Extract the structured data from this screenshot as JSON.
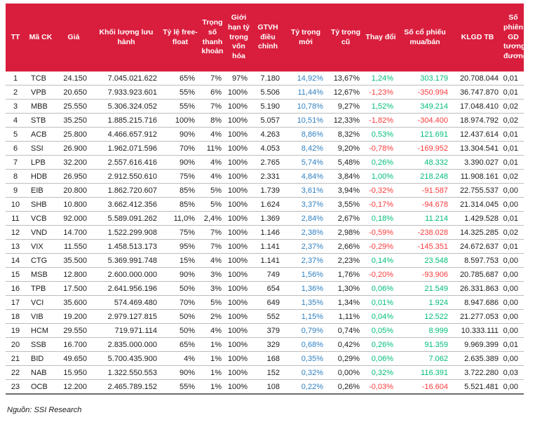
{
  "colors": {
    "header_bg": "#D91E3D",
    "header_text": "#FFFFFF",
    "body_text": "#1B1B1B",
    "blue": "#2E7FC1",
    "green": "#00BE78",
    "red": "#FA3B3B",
    "row_divider": "#BDBDBD",
    "table_bottom_border": "#6D6D6D"
  },
  "footer": {
    "source": "Nguồn: SSI Research"
  },
  "table": {
    "columns": [
      {
        "key": "tt",
        "label": "TT",
        "color_rule": "none"
      },
      {
        "key": "ma-ck",
        "label": "Mã CK",
        "color_rule": "none"
      },
      {
        "key": "gia",
        "label": "Giá",
        "color_rule": "none"
      },
      {
        "key": "khoi-luong-luu-hanh",
        "label": "Khối lượng lưu hành",
        "color_rule": "none"
      },
      {
        "key": "ty-le-free-float",
        "label": "Tỷ lệ free-float",
        "color_rule": "none"
      },
      {
        "key": "trong-so-thanh-khoan",
        "label": "Trọng số thanh khoản",
        "color_rule": "none"
      },
      {
        "key": "gioi-han-ty-trong-von-hoa",
        "label": "Giới hạn tỷ trọng vốn hóa",
        "color_rule": "none"
      },
      {
        "key": "gtvh-dieu-chinh",
        "label": "GTVH điều chỉnh",
        "color_rule": "none"
      },
      {
        "key": "ty-trong-moi",
        "label": "Tỷ trọng mới",
        "color_rule": "blue"
      },
      {
        "key": "ty-trong-cu",
        "label": "Tỷ trọng cũ",
        "color_rule": "none"
      },
      {
        "key": "thay-doi",
        "label": "Thay đổi",
        "color_rule": "sign"
      },
      {
        "key": "so-co-phieu-mua-ban",
        "label": "Số cổ phiếu mua/bán",
        "color_rule": "sign"
      },
      {
        "key": "klgd-tb",
        "label": "KLGD TB",
        "color_rule": "none"
      },
      {
        "key": "so-phien-gd-tuong-duong",
        "label": "Số phiên GD tương đương",
        "color_rule": "none"
      }
    ],
    "rows": [
      [
        "1",
        "TCB",
        "24.150",
        "7.045.021.622",
        "65%",
        "7%",
        "97%",
        "7.180",
        "14,92%",
        "13,67%",
        "1,24%",
        "303.179",
        "20.708.044",
        "0,01"
      ],
      [
        "2",
        "VPB",
        "20.650",
        "7.933.923.601",
        "55%",
        "6%",
        "100%",
        "5.506",
        "11,44%",
        "12,67%",
        "-1,23%",
        "-350.994",
        "36.747.870",
        "0,01"
      ],
      [
        "3",
        "MBB",
        "25.550",
        "5.306.324.052",
        "55%",
        "7%",
        "100%",
        "5.190",
        "10,78%",
        "9,27%",
        "1,52%",
        "349.214",
        "17.048.410",
        "0,02"
      ],
      [
        "4",
        "STB",
        "35.250",
        "1.885.215.716",
        "100%",
        "8%",
        "100%",
        "5.057",
        "10,51%",
        "12,33%",
        "-1,82%",
        "-304.400",
        "18.974.792",
        "0,02"
      ],
      [
        "5",
        "ACB",
        "25.800",
        "4.466.657.912",
        "90%",
        "4%",
        "100%",
        "4.263",
        "8,86%",
        "8,32%",
        "0,53%",
        "121.691",
        "12.437.614",
        "0,01"
      ],
      [
        "6",
        "SSI",
        "26.900",
        "1.962.071.596",
        "70%",
        "11%",
        "100%",
        "4.053",
        "8,42%",
        "9,20%",
        "-0,78%",
        "-169.952",
        "13.304.541",
        "0,01"
      ],
      [
        "7",
        "LPB",
        "32.200",
        "2.557.616.416",
        "90%",
        "4%",
        "100%",
        "2.765",
        "5,74%",
        "5,48%",
        "0,26%",
        "48.332",
        "3.390.027",
        "0,01"
      ],
      [
        "8",
        "HDB",
        "26.950",
        "2.912.550.610",
        "75%",
        "4%",
        "100%",
        "2.331",
        "4,84%",
        "3,84%",
        "1,00%",
        "218.248",
        "11.908.161",
        "0,02"
      ],
      [
        "9",
        "EIB",
        "20.800",
        "1.862.720.607",
        "85%",
        "5%",
        "100%",
        "1.739",
        "3,61%",
        "3,94%",
        "-0,32%",
        "-91.587",
        "22.755.537",
        "0,00"
      ],
      [
        "10",
        "SHB",
        "10.800",
        "3.662.412.356",
        "85%",
        "5%",
        "100%",
        "1.624",
        "3,37%",
        "3,55%",
        "-0,17%",
        "-94.678",
        "21.314.045",
        "0,00"
      ],
      [
        "11",
        "VCB",
        "92.000",
        "5.589.091.262",
        "11,0%",
        "2,4%",
        "100%",
        "1.369",
        "2,84%",
        "2,67%",
        "0,18%",
        "11.214",
        "1.429.528",
        "0,01"
      ],
      [
        "12",
        "VND",
        "14.700",
        "1.522.299.908",
        "75%",
        "7%",
        "100%",
        "1.146",
        "2,38%",
        "2,98%",
        "-0,59%",
        "-238.028",
        "14.325.285",
        "0,02"
      ],
      [
        "13",
        "VIX",
        "11.550",
        "1.458.513.173",
        "95%",
        "7%",
        "100%",
        "1.141",
        "2,37%",
        "2,66%",
        "-0,29%",
        "-145.351",
        "24.672.637",
        "0,01"
      ],
      [
        "14",
        "CTG",
        "35.500",
        "5.369.991.748",
        "15%",
        "4%",
        "100%",
        "1.141",
        "2,37%",
        "2,23%",
        "0,14%",
        "23.548",
        "8.597.753",
        "0,00"
      ],
      [
        "15",
        "MSB",
        "12.800",
        "2.600.000.000",
        "90%",
        "3%",
        "100%",
        "749",
        "1,56%",
        "1,76%",
        "-0,20%",
        "-93.906",
        "20.785.687",
        "0,00"
      ],
      [
        "16",
        "TPB",
        "17.500",
        "2.641.956.196",
        "50%",
        "3%",
        "100%",
        "654",
        "1,36%",
        "1,30%",
        "0,06%",
        "21.549",
        "26.331.863",
        "0,00"
      ],
      [
        "17",
        "VCI",
        "35.600",
        "574.469.480",
        "70%",
        "5%",
        "100%",
        "649",
        "1,35%",
        "1,34%",
        "0,01%",
        "1.924",
        "8.947.686",
        "0,00"
      ],
      [
        "18",
        "VIB",
        "19.200",
        "2.979.127.815",
        "50%",
        "2%",
        "100%",
        "552",
        "1,15%",
        "1,11%",
        "0,04%",
        "12.522",
        "21.277.053",
        "0,00"
      ],
      [
        "19",
        "HCM",
        "29.550",
        "719.971.114",
        "50%",
        "4%",
        "100%",
        "379",
        "0,79%",
        "0,74%",
        "0,05%",
        "8.999",
        "10.333.111",
        "0,00"
      ],
      [
        "20",
        "SSB",
        "16.700",
        "2.835.000.000",
        "65%",
        "1%",
        "100%",
        "329",
        "0,68%",
        "0,42%",
        "0,26%",
        "91.359",
        "9.969.399",
        "0,01"
      ],
      [
        "21",
        "BID",
        "49.650",
        "5.700.435.900",
        "4%",
        "1%",
        "100%",
        "168",
        "0,35%",
        "0,29%",
        "0,06%",
        "7.062",
        "2.635.389",
        "0,00"
      ],
      [
        "22",
        "NAB",
        "15.950",
        "1.322.550.553",
        "90%",
        "1%",
        "100%",
        "152",
        "0,32%",
        "0,00%",
        "0,32%",
        "116.391",
        "3.722.280",
        "0,03"
      ],
      [
        "23",
        "OCB",
        "12.200",
        "2.465.789.152",
        "55%",
        "1%",
        "100%",
        "108",
        "0,22%",
        "0,26%",
        "-0,03%",
        "-16.604",
        "5.521.481",
        "0,00"
      ]
    ]
  }
}
